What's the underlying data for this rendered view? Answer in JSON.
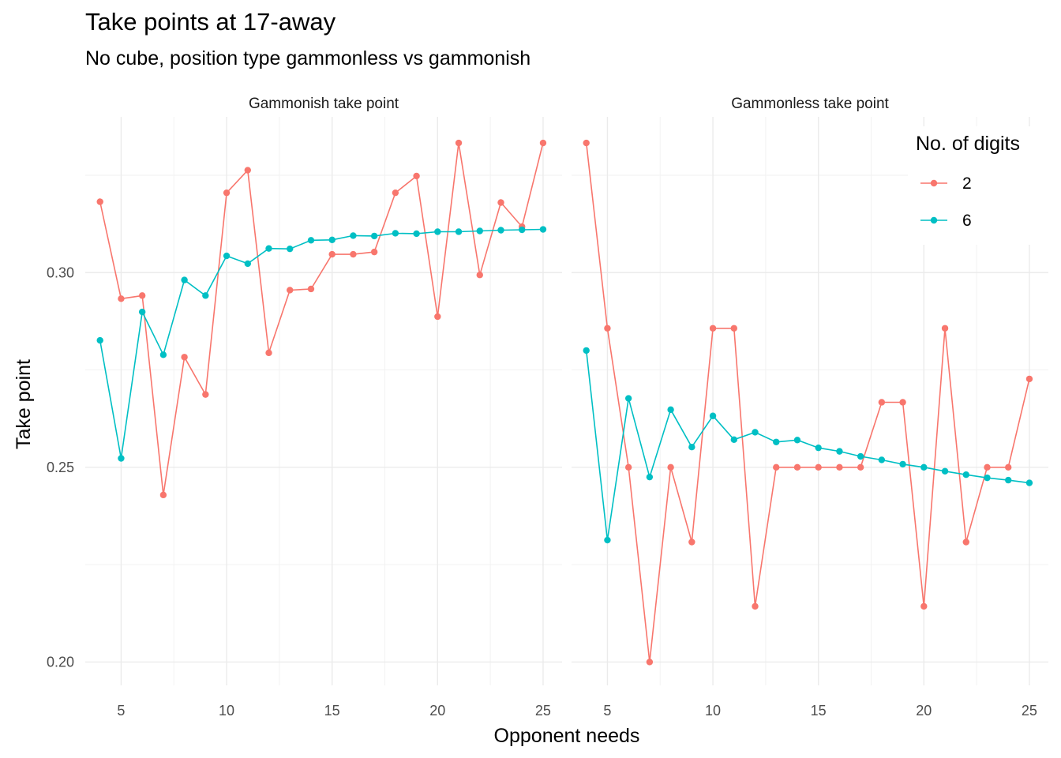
{
  "title": "Take points at 17-away",
  "subtitle": "No cube, position type gammonless vs gammonish",
  "chart_data": {
    "type": "line",
    "xlabel": "Opponent needs",
    "ylabel": "Take point",
    "xlim": [
      3.3,
      25.9
    ],
    "ylim": [
      0.194,
      0.34
    ],
    "x_ticks": [
      5,
      10,
      15,
      20,
      25
    ],
    "x_tick_labels": [
      "5",
      "10",
      "15",
      "20",
      "25"
    ],
    "y_ticks": [
      0.2,
      0.25,
      0.3
    ],
    "y_tick_labels": [
      "0.20",
      "0.25",
      "0.30"
    ],
    "grid": true,
    "legend": {
      "title": "No. of digits",
      "position": "top-right",
      "entries": [
        "2",
        "6"
      ]
    },
    "colors": {
      "2": "#f8766d",
      "6": "#00bfc4"
    },
    "x": [
      4,
      5,
      6,
      7,
      8,
      9,
      10,
      11,
      12,
      13,
      14,
      15,
      16,
      17,
      18,
      19,
      20,
      21,
      22,
      23,
      24,
      25
    ],
    "panels": [
      {
        "label": "Gammonish take point",
        "series": [
          {
            "name": "2",
            "values": [
              0.3182,
              0.2933,
              0.2941,
              0.2429,
              0.2783,
              0.2687,
              0.3205,
              0.3263,
              0.2794,
              0.2955,
              0.2958,
              0.3047,
              0.3047,
              0.3053,
              0.3205,
              0.3248,
              0.2887,
              0.3333,
              0.2994,
              0.318,
              0.3118,
              0.3333
            ]
          },
          {
            "name": "6",
            "values": [
              0.2826,
              0.2523,
              0.2899,
              0.2789,
              0.2981,
              0.2941,
              0.3043,
              0.3023,
              0.3062,
              0.3061,
              0.3083,
              0.3084,
              0.3095,
              0.3094,
              0.3101,
              0.31,
              0.3105,
              0.3105,
              0.3107,
              0.3109,
              0.311,
              0.3111
            ]
          }
        ]
      },
      {
        "label": "Gammonless take point",
        "series": [
          {
            "name": "2",
            "values": [
              0.3333,
              0.2857,
              0.25,
              0.2,
              0.25,
              0.2308,
              0.2857,
              0.2857,
              0.2143,
              0.25,
              0.25,
              0.25,
              0.25,
              0.25,
              0.2667,
              0.2667,
              0.2143,
              0.2857,
              0.2308,
              0.25,
              0.25,
              0.2727
            ]
          },
          {
            "name": "6",
            "values": [
              0.28,
              0.2313,
              0.2677,
              0.2475,
              0.2648,
              0.2552,
              0.2632,
              0.2571,
              0.259,
              0.2565,
              0.257,
              0.255,
              0.2541,
              0.2528,
              0.2519,
              0.2508,
              0.25,
              0.249,
              0.2481,
              0.2473,
              0.2467,
              0.246
            ]
          }
        ]
      }
    ]
  }
}
